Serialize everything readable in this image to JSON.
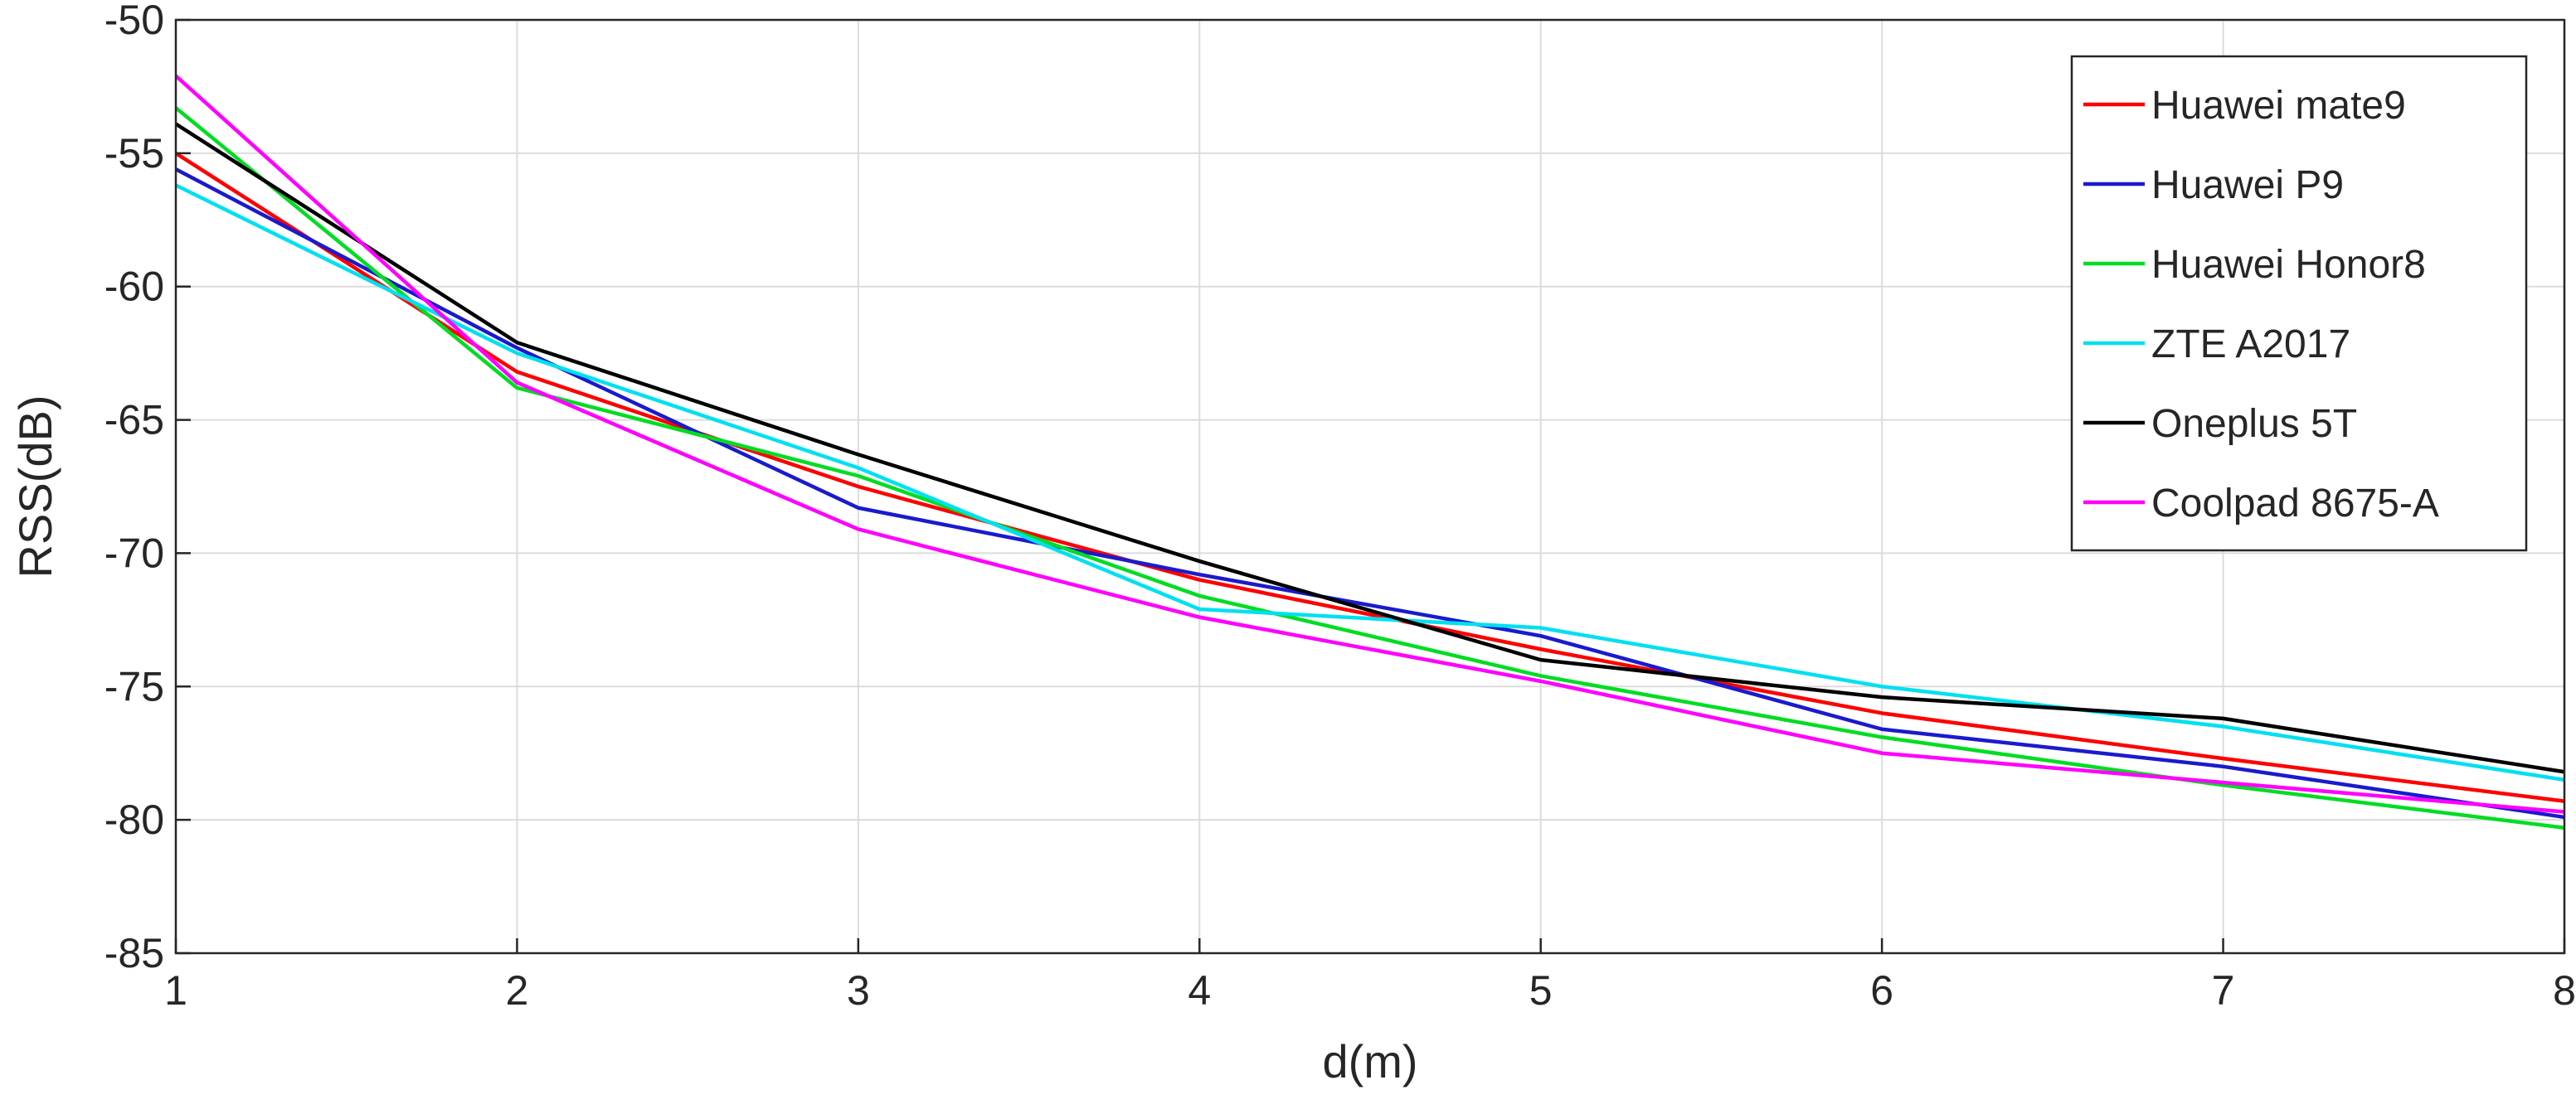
{
  "chart_data": {
    "type": "line",
    "title": "",
    "xlabel": "d(m)",
    "ylabel": "RSS(dB)",
    "xlim": [
      1,
      8
    ],
    "ylim": [
      -85,
      -50
    ],
    "x": [
      1,
      2,
      3,
      4,
      5,
      6,
      7,
      8
    ],
    "x_ticks": [
      "1",
      "2",
      "3",
      "4",
      "5",
      "6",
      "7",
      "8"
    ],
    "y_ticks": [
      "-50",
      "-55",
      "-60",
      "-65",
      "-70",
      "-75",
      "-80",
      "-85"
    ],
    "grid": true,
    "legend_position": "top-right",
    "series": [
      {
        "name": "Huawei mate9",
        "color": "#ff0000",
        "values": [
          -55.0,
          -63.2,
          -67.5,
          -71.0,
          -73.6,
          -76.0,
          -77.7,
          -79.3
        ]
      },
      {
        "name": "Huawei P9",
        "color": "#1a1acd",
        "values": [
          -55.6,
          -62.3,
          -68.3,
          -70.8,
          -73.1,
          -76.6,
          -78.0,
          -79.9
        ]
      },
      {
        "name": "Huawei Honor8",
        "color": "#00dd22",
        "values": [
          -53.3,
          -63.8,
          -67.1,
          -71.6,
          -74.6,
          -76.9,
          -78.7,
          -80.3
        ]
      },
      {
        "name": "ZTE A2017",
        "color": "#00e0f0",
        "values": [
          -56.2,
          -62.5,
          -66.8,
          -72.1,
          -72.8,
          -75.0,
          -76.5,
          -78.5
        ]
      },
      {
        "name": "Oneplus 5T",
        "color": "#000000",
        "values": [
          -53.9,
          -62.1,
          -66.3,
          -70.3,
          -74.0,
          -75.4,
          -76.2,
          -78.2
        ]
      },
      {
        "name": "Coolpad 8675-A",
        "color": "#ff00ff",
        "values": [
          -52.1,
          -63.6,
          -69.1,
          -72.4,
          -74.8,
          -77.5,
          -78.6,
          -79.7
        ]
      }
    ]
  }
}
